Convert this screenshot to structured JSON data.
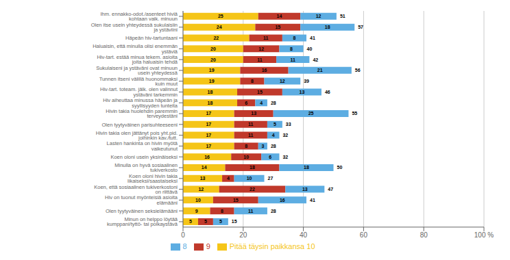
{
  "chart_data": {
    "type": "bar",
    "orientation": "horizontal",
    "stacked": true,
    "data_labels": true,
    "grid": true,
    "legend": "bottom",
    "categories": [
      "Ihm. ennakko-odot./asenteet hiviä kohtaan vaik. minuun",
      "Olen itse usein yhteydessä sukulaisiin ja ystäviini",
      "Häpeän hiv-tartuntaani",
      "Haluaisin, että minulla olisi enemmän ystäviä",
      "Hiv-tart. estää minua tekem. asioita joita haluaisin tehdä",
      "Sukulaiseni ja ystäväni ovat minuun usein yhteydessä",
      "Tunnen itseni välillä huonommaksi kuin muut",
      "Hiv-tart. toteam. jälk. olen valinnut ystäväni tarkemmin",
      "Hiv aiheuttaa minussa häpeän ja syyllisyyden tunteita",
      "Hivin takia huolehdin paremmin terveydestäni",
      "Olen tyytyväinen parisuhteeseeni",
      "Hivin takia olen jättänyt pois yht.pid. joihinkin kav./tutt.",
      "Lasten hankinta on hivin myötä vaikeutunut",
      "Koen oloni usein yksinäiseksi",
      "Minulla on hyvä sosiaalinen tukiverkosto",
      "Koen oloni hivin takia likaiseksi/saastaiseksi",
      "Koen, että sosiaalinen tukiverkostoni on riittävä",
      "Hiv on tuonut myönteisiä asioita elämääni",
      "Olen tyytyväinen seksielämääni",
      "Minun on helppo löytää kumppani/tyttö- tai poikaystävä"
    ],
    "series": [
      {
        "name": "Pitää täysin paikkansa 10",
        "color": "#F5C518",
        "values": [
          25,
          24,
          22,
          20,
          20,
          19,
          19,
          18,
          18,
          17,
          17,
          17,
          17,
          16,
          14,
          13,
          12,
          10,
          9,
          5
        ]
      },
      {
        "name": "9",
        "color": "#C0392B",
        "values": [
          14,
          15,
          11,
          12,
          11,
          16,
          8,
          15,
          6,
          13,
          11,
          11,
          8,
          10,
          18,
          4,
          22,
          15,
          8,
          5
        ]
      },
      {
        "name": "8",
        "color": "#5DADE2",
        "values": [
          12,
          18,
          8,
          8,
          11,
          21,
          12,
          13,
          4,
          25,
          5,
          4,
          3,
          6,
          18,
          10,
          13,
          16,
          11,
          5
        ]
      }
    ],
    "totals": [
      51,
      57,
      41,
      40,
      42,
      56,
      39,
      46,
      28,
      55,
      33,
      32,
      28,
      32,
      50,
      27,
      47,
      41,
      28,
      15
    ],
    "xlim": [
      0,
      100
    ],
    "xticks": [
      0,
      20,
      40,
      60,
      80,
      {
        "value": 100,
        "label": "100 %"
      }
    ]
  }
}
